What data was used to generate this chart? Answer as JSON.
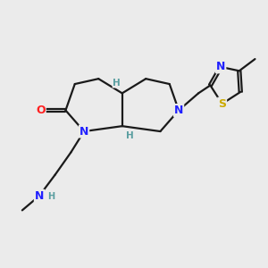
{
  "bg_color": "#ebebeb",
  "bond_color": "#1a1a1a",
  "N_color": "#2020ff",
  "O_color": "#ff2020",
  "S_color": "#ccaa00",
  "H_stereo_color": "#5a9ea0",
  "line_width": 1.6,
  "figsize": [
    3.0,
    3.0
  ],
  "dpi": 100,
  "xlim": [
    0,
    10
  ],
  "ylim": [
    0,
    10
  ]
}
